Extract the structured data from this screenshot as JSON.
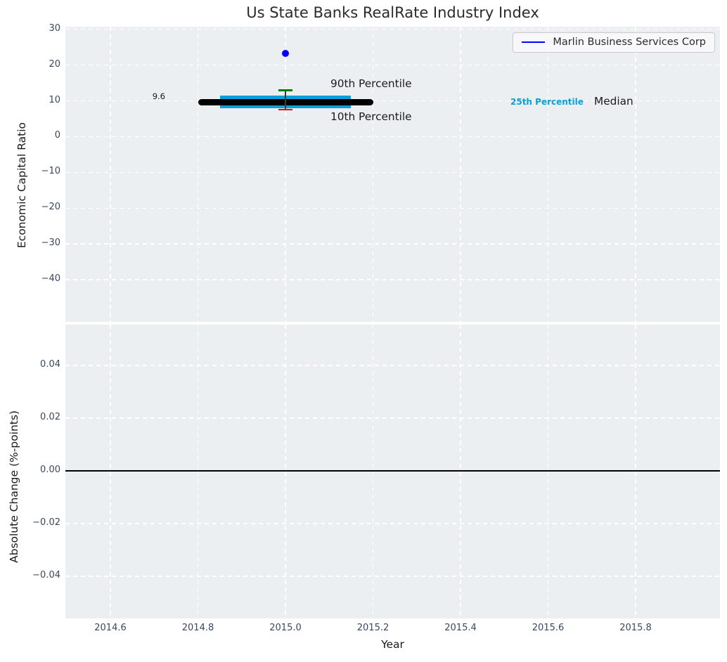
{
  "title": "Us State Banks RealRate Industry Index",
  "legend": {
    "label": "Marlin Business Services Corp",
    "line_color": "#0000ff",
    "position": "upper right"
  },
  "colors": {
    "plot_background": "#ebeff1",
    "grid": "#ffffff",
    "tick_label": "#39485e",
    "company_blue": "#0000ff",
    "percentile_band_cyan": "#0a9fd6",
    "p90_green": "#007c00",
    "p10_red": "#ea0000",
    "median_black": "#000000"
  },
  "chart_data": [
    {
      "type": "scatter",
      "title": "Us State Banks RealRate Industry Index",
      "ylabel": "Economic Capital Ratio",
      "xlabel": "",
      "ylim": [
        -52,
        31
      ],
      "xlim": [
        2014.5,
        2016.0
      ],
      "grid": true,
      "legend_entry": "Marlin Business Services Corp",
      "yticks": {
        "values": [
          30,
          20,
          10,
          0,
          -10,
          -20,
          -30,
          -40
        ],
        "labels": [
          "30",
          "20",
          "10",
          "0",
          "−10",
          "−20",
          "−30",
          "−40"
        ]
      },
      "series": [
        {
          "name": "Marlin Business Services Corp",
          "type": "scatter",
          "color": "#0000ff",
          "points": [
            [
              2015.0,
              23.2
            ]
          ]
        },
        {
          "name": "Median",
          "type": "hline",
          "color": "#000000",
          "y": 9.6,
          "x_start": 2014.8,
          "x_end": 2015.2
        },
        {
          "name": "25th-75th Percentile Band",
          "type": "band",
          "color": "#0a9fd6",
          "y_low": 8.6,
          "y_high": 10.7,
          "x_start": 2014.85,
          "x_end": 2015.15
        },
        {
          "name": "90th Percentile",
          "type": "cap",
          "color": "#007c00",
          "x": 2015.0,
          "y": 12.9
        },
        {
          "name": "10th Percentile",
          "type": "cap",
          "color": "#ea0000",
          "x": 2015.0,
          "y": 7.5
        }
      ],
      "annotations": {
        "median_value": "9.6",
        "p90": "90th Percentile",
        "p10": "10th Percentile",
        "p25": "25th Percentile",
        "median": "Median"
      }
    },
    {
      "type": "line",
      "title": "",
      "ylabel": "Absolute Change (%-points)",
      "xlabel": "Year",
      "ylim": [
        -0.0555,
        0.0555
      ],
      "xlim": [
        2014.5,
        2016.0
      ],
      "grid": true,
      "yticks": {
        "values": [
          0.04,
          0.02,
          0,
          -0.02,
          -0.04
        ],
        "labels": [
          "0.04",
          "0.02",
          "0.00",
          "−0.02",
          "−0.04"
        ]
      },
      "xticks": {
        "values": [
          2014.6,
          2014.8,
          2015.0,
          2015.2,
          2015.4,
          2015.6,
          2015.8
        ],
        "labels": [
          "2014.6",
          "2014.8",
          "2015.0",
          "2015.2",
          "2015.4",
          "2015.6",
          "2015.8"
        ]
      },
      "zero_line": 0.0,
      "series": []
    }
  ]
}
